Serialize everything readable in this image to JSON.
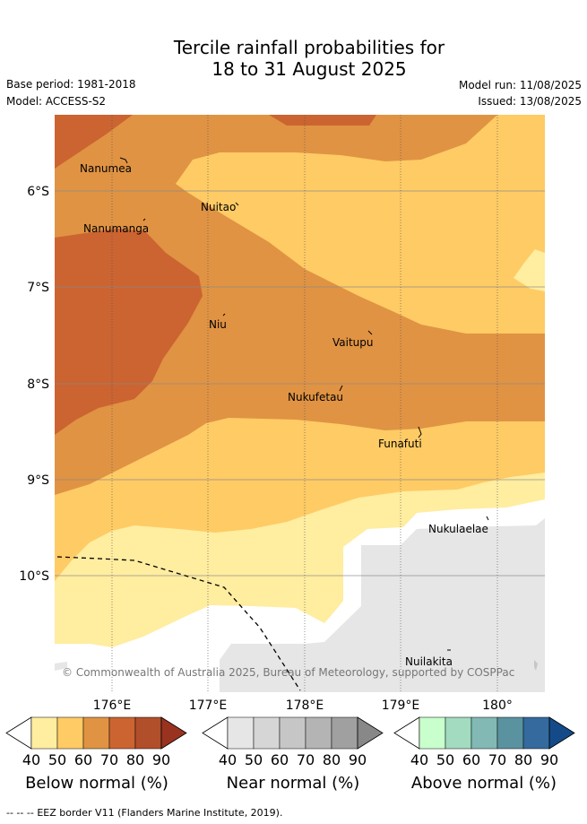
{
  "header": {
    "title_line1": "Tercile rainfall probabilities for",
    "title_line2": "18 to 31 August 2025",
    "base_period": "Base period: 1981-2018",
    "model": "Model: ACCESS-S2",
    "model_run": "Model run: 11/08/2025",
    "issued": "Issued: 13/08/2025"
  },
  "map": {
    "lat_labels": [
      "6°S",
      "7°S",
      "8°S",
      "9°S",
      "10°S"
    ],
    "lon_labels": [
      "176°E",
      "177°E",
      "178°E",
      "179°E",
      "180°"
    ],
    "islands": [
      "Nanumea",
      "Nuitao",
      "Nanumanga",
      "Niu",
      "Vaitupu",
      "Nukufetau",
      "Funafuti",
      "Nukulaelae",
      "Nuilakita"
    ],
    "copyright": "© Commonwealth of Australia 2025, Bureau of Meteorology, supported by COSPPac"
  },
  "colorbars": [
    {
      "title": "Below normal (%)",
      "ticks": [
        "40",
        "50",
        "60",
        "70",
        "80",
        "90"
      ],
      "colors": [
        "#ffffff",
        "#ffeda0",
        "#fecb65",
        "#e09343",
        "#cb6431",
        "#b14f2b",
        "#993320"
      ]
    },
    {
      "title": "Near normal (%)",
      "ticks": [
        "40",
        "50",
        "60",
        "70",
        "80",
        "90"
      ],
      "colors": [
        "#ffffff",
        "#e6e6e6",
        "#d6d6d6",
        "#c6c6c6",
        "#b4b4b4",
        "#a0a0a0",
        "#888888"
      ]
    },
    {
      "title": "Above normal (%)",
      "ticks": [
        "40",
        "50",
        "60",
        "70",
        "80",
        "90"
      ],
      "colors": [
        "#ffffff",
        "#c8ffcc",
        "#a2dbc0",
        "#82b9b4",
        "#5a92a0",
        "#346a9e",
        "#144a88"
      ]
    }
  ],
  "legend": {
    "eez_symbol": "-- -- --",
    "eez_text": "EEZ border V11 (Flanders Marine Institute, 2019)."
  }
}
